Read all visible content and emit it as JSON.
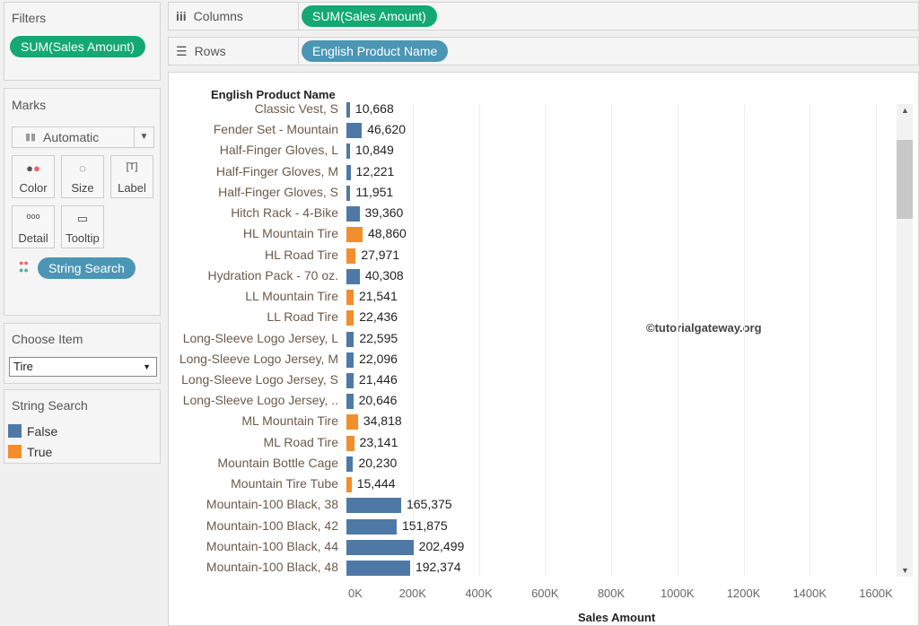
{
  "filters": {
    "title": "Filters",
    "pill": "SUM(Sales Amount)"
  },
  "marks": {
    "title": "Marks",
    "type": "Automatic",
    "buttons": [
      "Color",
      "Size",
      "Label",
      "Detail",
      "Tooltip"
    ],
    "color_pill": "String Search"
  },
  "choose_item": {
    "title": "Choose Item",
    "value": "Tire"
  },
  "legend": {
    "title": "String Search",
    "items": [
      {
        "label": "False",
        "color": "#4e79a7"
      },
      {
        "label": "True",
        "color": "#f28e2b"
      }
    ]
  },
  "shelves": {
    "columns_label": "Columns",
    "columns_pill": "SUM(Sales Amount)",
    "rows_label": "Rows",
    "rows_pill": "English Product Name"
  },
  "watermark": "©tutorialgateway.org",
  "chart_data": {
    "type": "bar",
    "orientation": "horizontal",
    "row_header": "English Product Name",
    "xlabel": "Sales Amount",
    "xlim": [
      0,
      1600000
    ],
    "xticks": [
      "0K",
      "200K",
      "400K",
      "600K",
      "800K",
      "1000K",
      "1200K",
      "1400K",
      "1600K"
    ],
    "categories": [
      "Classic Vest, S",
      "Fender Set - Mountain",
      "Half-Finger Gloves, L",
      "Half-Finger Gloves, M",
      "Half-Finger Gloves, S",
      "Hitch Rack - 4-Bike",
      "HL Mountain Tire",
      "HL Road Tire",
      "Hydration Pack - 70 oz.",
      "LL Mountain Tire",
      "LL Road Tire",
      "Long-Sleeve Logo Jersey, L",
      "Long-Sleeve Logo Jersey, M",
      "Long-Sleeve Logo Jersey, S",
      "Long-Sleeve Logo Jersey, ..",
      "ML Mountain Tire",
      "ML Road Tire",
      "Mountain Bottle Cage",
      "Mountain Tire Tube",
      "Mountain-100 Black, 38",
      "Mountain-100 Black, 42",
      "Mountain-100 Black, 44",
      "Mountain-100 Black, 48"
    ],
    "values": [
      10668,
      46620,
      10849,
      12221,
      11951,
      39360,
      48860,
      27971,
      40308,
      21541,
      22436,
      22595,
      22096,
      21446,
      20646,
      34818,
      23141,
      20230,
      15444,
      165375,
      151875,
      202499,
      192374
    ],
    "labels": [
      "10,668",
      "46,620",
      "10,849",
      "12,221",
      "11,951",
      "39,360",
      "48,860",
      "27,971",
      "40,308",
      "21,541",
      "22,436",
      "22,595",
      "22,096",
      "21,446",
      "20,646",
      "34,818",
      "23,141",
      "20,230",
      "15,444",
      "165,375",
      "151,875",
      "202,499",
      "192,374"
    ],
    "string_search": [
      false,
      false,
      false,
      false,
      false,
      false,
      true,
      true,
      false,
      true,
      true,
      false,
      false,
      false,
      false,
      true,
      true,
      false,
      true,
      false,
      false,
      false,
      false
    ]
  }
}
